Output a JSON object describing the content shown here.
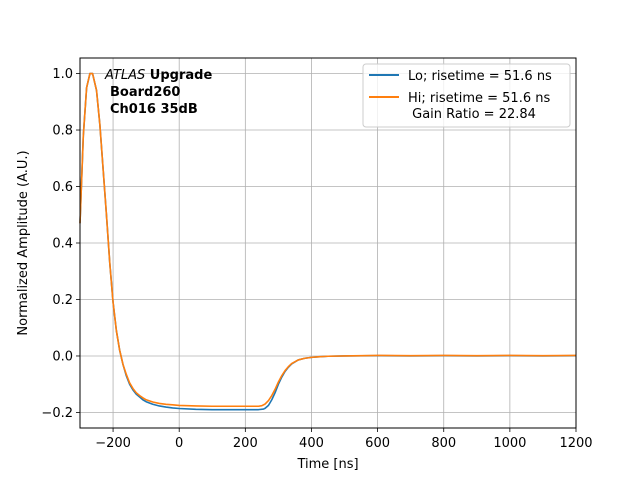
{
  "chart_data": {
    "type": "line",
    "xlabel": "Time [ns]",
    "ylabel": "Normalized Amplitude (A.U.)",
    "xlim": [
      -300,
      1200
    ],
    "ylim": [
      -0.255,
      1.055
    ],
    "xticks": [
      -200,
      0,
      200,
      400,
      600,
      800,
      1000,
      1200
    ],
    "yticks": [
      -0.2,
      0.0,
      0.2,
      0.4,
      0.6,
      0.8,
      1.0
    ],
    "xtick_labels": [
      "−200",
      "0",
      "200",
      "400",
      "600",
      "800",
      "1000",
      "1200"
    ],
    "ytick_labels": [
      "−0.2",
      "0.0",
      "0.2",
      "0.4",
      "0.6",
      "0.8",
      "1.0"
    ],
    "grid": true,
    "legend_placement": "top-right",
    "annotation": {
      "line1_italic": "ATLAS",
      "line1_bold": " Upgrade",
      "line2": "Board260",
      "line3": "Ch016 35dB"
    },
    "series": [
      {
        "name": "Lo; risetime = 51.6 ns",
        "color": "#1f77b4",
        "x": [
          -300,
          -290,
          -280,
          -270,
          -262,
          -250,
          -240,
          -230,
          -220,
          -210,
          -200,
          -190,
          -180,
          -170,
          -160,
          -150,
          -140,
          -130,
          -120,
          -110,
          -100,
          -80,
          -60,
          -40,
          -20,
          0,
          50,
          100,
          150,
          200,
          240,
          255,
          260,
          270,
          280,
          290,
          300,
          310,
          320,
          330,
          340,
          360,
          380,
          400,
          420,
          450,
          500,
          600,
          700,
          800,
          900,
          1000,
          1100,
          1200
        ],
        "y": [
          0.47,
          0.78,
          0.95,
          1.0,
          1.0,
          0.94,
          0.82,
          0.66,
          0.5,
          0.33,
          0.19,
          0.09,
          0.02,
          -0.03,
          -0.07,
          -0.1,
          -0.12,
          -0.135,
          -0.145,
          -0.155,
          -0.162,
          -0.171,
          -0.177,
          -0.181,
          -0.184,
          -0.186,
          -0.189,
          -0.19,
          -0.19,
          -0.19,
          -0.19,
          -0.188,
          -0.185,
          -0.175,
          -0.155,
          -0.13,
          -0.1,
          -0.075,
          -0.055,
          -0.04,
          -0.028,
          -0.014,
          -0.008,
          -0.005,
          -0.003,
          -0.001,
          0.0,
          0.001,
          0.0,
          0.001,
          0.0,
          0.001,
          0.0,
          0.001
        ]
      },
      {
        "name": "Hi; risetime = 51.6 ns\n Gain Ratio = 22.84",
        "color": "#ff7f0e",
        "x": [
          -300,
          -290,
          -280,
          -270,
          -262,
          -250,
          -240,
          -230,
          -220,
          -210,
          -200,
          -190,
          -180,
          -170,
          -160,
          -150,
          -140,
          -130,
          -120,
          -110,
          -100,
          -80,
          -60,
          -40,
          -20,
          0,
          50,
          100,
          150,
          200,
          240,
          250,
          260,
          270,
          280,
          290,
          300,
          310,
          320,
          330,
          340,
          360,
          380,
          400,
          420,
          450,
          500,
          600,
          700,
          800,
          900,
          1000,
          1100,
          1200
        ],
        "y": [
          0.47,
          0.78,
          0.95,
          1.0,
          1.0,
          0.94,
          0.82,
          0.66,
          0.5,
          0.33,
          0.19,
          0.09,
          0.02,
          -0.03,
          -0.065,
          -0.095,
          -0.115,
          -0.13,
          -0.14,
          -0.148,
          -0.155,
          -0.163,
          -0.168,
          -0.171,
          -0.173,
          -0.175,
          -0.177,
          -0.178,
          -0.178,
          -0.178,
          -0.178,
          -0.176,
          -0.17,
          -0.158,
          -0.14,
          -0.118,
          -0.092,
          -0.07,
          -0.052,
          -0.038,
          -0.027,
          -0.014,
          -0.008,
          -0.005,
          -0.003,
          -0.001,
          0.0,
          0.002,
          0.001,
          0.002,
          0.001,
          0.002,
          0.001,
          0.002
        ]
      }
    ]
  }
}
